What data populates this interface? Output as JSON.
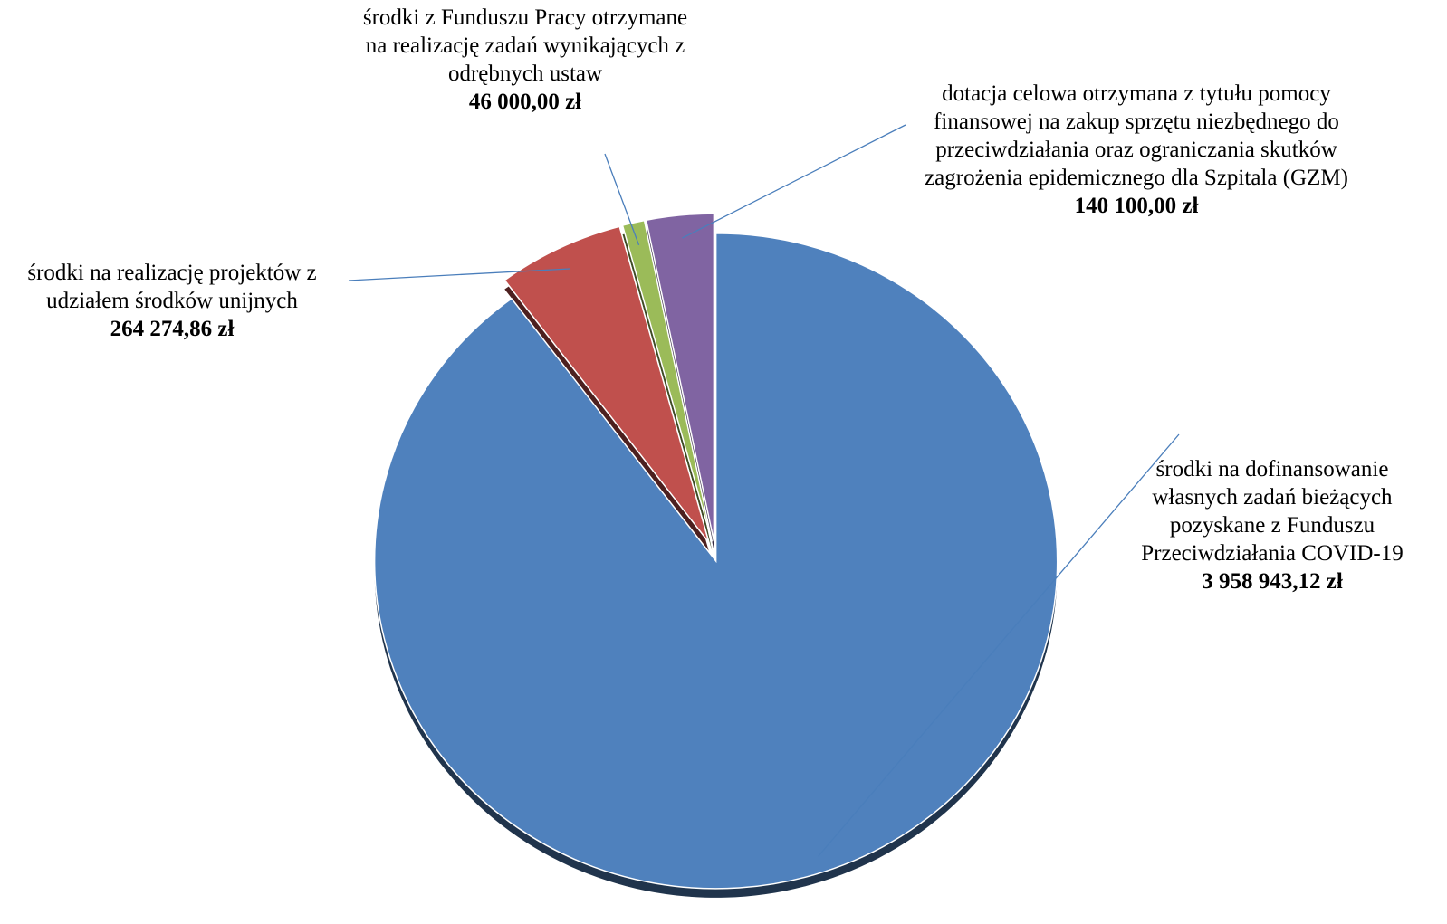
{
  "chart_data": {
    "type": "pie",
    "categories": [
      "środki na dofinansowanie własnych zadań bieżących pozyskane z Funduszu Przeciwdziałania COVID-19",
      "środki na realizację projektów z udziałem środków unijnych",
      "środki z Funduszu Pracy otrzymane na realizację zadań wynikających z odrębnych ustaw",
      "dotacja celowa otrzymana z tytułu pomocy finansowej na zakup sprzętu niezbędnego do przeciwdziałania oraz ograniczania skutków zagrożenia epidemicznego dla Szpitala (GZM)"
    ],
    "values": [
      3958943.12,
      264274.86,
      46000,
      140100
    ],
    "value_labels": [
      "3 958 943,12 zł",
      "264 274,86 zł",
      "46 000,00 zł",
      "140 100,00 zł"
    ],
    "colors": [
      "#4f81bd",
      "#c0504d",
      "#9bbb59",
      "#8064a2"
    ]
  }
}
